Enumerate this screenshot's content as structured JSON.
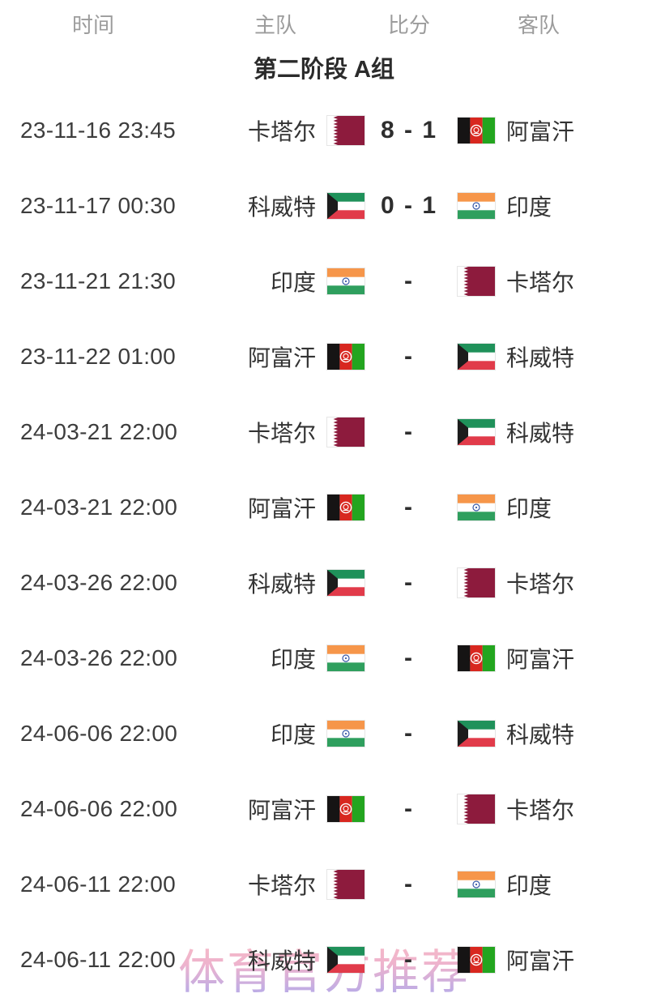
{
  "table": {
    "columns": {
      "time": "时间",
      "home": "主队",
      "score": "比分",
      "away": "客队"
    },
    "group_title": "第二阶段 A组"
  },
  "matches": [
    {
      "time": "23-11-16 23:45",
      "home": "卡塔尔",
      "home_flag": "qatar",
      "score": "8 - 1",
      "away": "阿富汗",
      "away_flag": "afghanistan"
    },
    {
      "time": "23-11-17 00:30",
      "home": "科威特",
      "home_flag": "kuwait",
      "score": "0 - 1",
      "away": "印度",
      "away_flag": "india"
    },
    {
      "time": "23-11-21 21:30",
      "home": "印度",
      "home_flag": "india",
      "score": "-",
      "away": "卡塔尔",
      "away_flag": "qatar"
    },
    {
      "time": "23-11-22 01:00",
      "home": "阿富汗",
      "home_flag": "afghanistan",
      "score": "-",
      "away": "科威特",
      "away_flag": "kuwait"
    },
    {
      "time": "24-03-21 22:00",
      "home": "卡塔尔",
      "home_flag": "qatar",
      "score": "-",
      "away": "科威特",
      "away_flag": "kuwait"
    },
    {
      "time": "24-03-21 22:00",
      "home": "阿富汗",
      "home_flag": "afghanistan",
      "score": "-",
      "away": "印度",
      "away_flag": "india"
    },
    {
      "time": "24-03-26 22:00",
      "home": "科威特",
      "home_flag": "kuwait",
      "score": "-",
      "away": "卡塔尔",
      "away_flag": "qatar"
    },
    {
      "time": "24-03-26 22:00",
      "home": "印度",
      "home_flag": "india",
      "score": "-",
      "away": "阿富汗",
      "away_flag": "afghanistan"
    },
    {
      "time": "24-06-06 22:00",
      "home": "印度",
      "home_flag": "india",
      "score": "-",
      "away": "科威特",
      "away_flag": "kuwait"
    },
    {
      "time": "24-06-06 22:00",
      "home": "阿富汗",
      "home_flag": "afghanistan",
      "score": "-",
      "away": "卡塔尔",
      "away_flag": "qatar"
    },
    {
      "time": "24-06-11 22:00",
      "home": "卡塔尔",
      "home_flag": "qatar",
      "score": "-",
      "away": "印度",
      "away_flag": "india"
    },
    {
      "time": "24-06-11 22:00",
      "home": "科威特",
      "home_flag": "kuwait",
      "score": "-",
      "away": "阿富汗",
      "away_flag": "afghanistan"
    }
  ],
  "watermark": "体育官方推荐",
  "colors": {
    "header_text": "#9c9c9c",
    "row_text": "#333333",
    "time_text": "#3d3d3d",
    "score_text": "#2e2e2e",
    "watermark_top": "#f6bac7",
    "watermark_bottom": "#b7abe8",
    "flags": {
      "qatar": {
        "maroon": "#8d1b3d",
        "white": "#ffffff"
      },
      "afghanistan": {
        "black": "#161414",
        "red": "#d8271f",
        "green": "#23a51f",
        "emblem": "#ffffff"
      },
      "kuwait": {
        "green": "#1f915a",
        "white": "#ffffff",
        "red": "#e13b4a",
        "black": "#1c1c1c"
      },
      "india": {
        "saffron": "#f6964a",
        "white": "#ffffff",
        "green": "#2f9f5e",
        "navy": "#3a5aa8"
      }
    }
  }
}
